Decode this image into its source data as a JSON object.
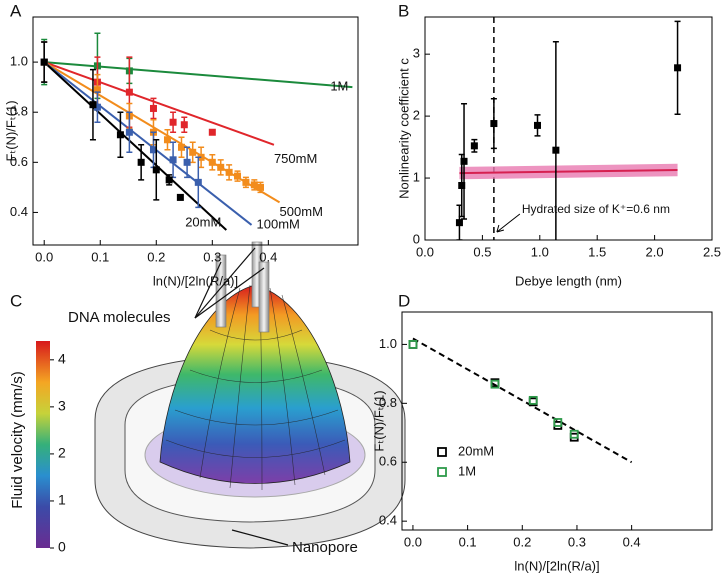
{
  "chart_data": [
    {
      "type": "scatter",
      "panel_label": "A",
      "xlabel": "ln(N)/[2ln(R/a)]",
      "ylabel": "Fₜ(N)/Fₜ(1)",
      "xlim": [
        -0.02,
        0.56
      ],
      "ylim": [
        0.27,
        1.18
      ],
      "xticks": [
        {
          "value": 0,
          "label": "0.0"
        },
        0.1,
        0.2,
        0.3,
        0.4
      ],
      "yticks": [
        0.4,
        0.6,
        0.8,
        {
          "value": 1,
          "label": "1.0"
        }
      ],
      "series": [
        {
          "name": "1M",
          "color": "#1b8a3c",
          "x": [
            0,
            0.095,
            0.152
          ],
          "values": [
            1.0,
            0.985,
            0.965
          ],
          "errors": [
            0.09,
            0.13,
            0.05
          ],
          "fit_x": [
            0,
            0.55
          ],
          "fit_values": [
            1.0,
            0.9
          ]
        },
        {
          "name": "750mM",
          "color": "#e0262b",
          "x": [
            0,
            0.095,
            0.152,
            0.195,
            0.23,
            0.25,
            0.3
          ],
          "values": [
            1.0,
            0.92,
            0.88,
            0.815,
            0.76,
            0.75,
            0.72
          ],
          "errors": [
            0.08,
            0.1,
            0.14,
            0.04,
            0.04,
            0.03,
            0.01
          ],
          "fit_x": [
            0,
            0.41
          ],
          "fit_values": [
            1.0,
            0.67
          ]
        },
        {
          "name": "500mM",
          "color": "#f28c1c",
          "x": [
            0,
            0.095,
            0.152,
            0.195,
            0.22,
            0.245,
            0.265,
            0.28,
            0.3,
            0.315,
            0.33,
            0.345,
            0.36,
            0.375,
            0.386
          ],
          "values": [
            1.0,
            0.89,
            0.785,
            0.72,
            0.69,
            0.66,
            0.64,
            0.62,
            0.6,
            0.58,
            0.56,
            0.545,
            0.52,
            0.51,
            0.5
          ],
          "errors": [
            0.08,
            0.06,
            0.05,
            0.05,
            0.04,
            0.04,
            0.04,
            0.04,
            0.03,
            0.03,
            0.03,
            0.02,
            0.02,
            0.02,
            0.02
          ],
          "fit_x": [
            0,
            0.42
          ],
          "fit_values": [
            1.0,
            0.44
          ]
        },
        {
          "name": "100mM",
          "color": "#3a5fad",
          "x": [
            0,
            0.095,
            0.152,
            0.195,
            0.23,
            0.255,
            0.275
          ],
          "values": [
            1.0,
            0.82,
            0.72,
            0.65,
            0.61,
            0.6,
            0.52
          ],
          "errors": [
            0.08,
            0.06,
            0.08,
            0.07,
            0.07,
            0.06,
            0.1
          ],
          "fit_x": [
            0,
            0.37
          ],
          "fit_values": [
            1.0,
            0.35
          ]
        },
        {
          "name": "20mM",
          "color": "#000000",
          "x": [
            0,
            0.087,
            0.136,
            0.173,
            0.2,
            0.223,
            0.243
          ],
          "values": [
            1.0,
            0.83,
            0.71,
            0.6,
            0.57,
            0.53,
            0.46
          ],
          "errors": [
            0.08,
            0.14,
            0.09,
            0.07,
            0.12,
            0.02,
            0.01
          ],
          "fit_x": [
            0,
            0.325
          ],
          "fit_values": [
            1.0,
            0.33
          ]
        }
      ]
    },
    {
      "type": "scatter",
      "panel_label": "B",
      "xlabel": "Debye length (nm)",
      "ylabel": "Nonlinearity coefficient c",
      "xlim": [
        0,
        2.5
      ],
      "ylim": [
        0,
        3.6
      ],
      "xticks": [
        {
          "value": 0,
          "label": "0.0"
        },
        0.5,
        {
          "value": 1,
          "label": "1.0"
        },
        1.5,
        {
          "value": 2,
          "label": "2.0"
        },
        2.5
      ],
      "yticks": [
        0,
        1,
        2,
        3
      ],
      "series": [
        {
          "color": "#000000",
          "x": [
            0.3,
            0.32,
            0.34,
            0.43,
            0.6,
            0.98,
            1.14,
            2.2
          ],
          "values": [
            0.28,
            0.88,
            1.27,
            1.52,
            1.88,
            1.85,
            1.45,
            2.78
          ],
          "errors": [
            0.28,
            0.5,
            0.93,
            0.1,
            0.4,
            0.17,
            1.75,
            0.75
          ]
        }
      ],
      "fit_x": [
        0.3,
        2.2
      ],
      "fit_values": [
        1.08,
        1.13
      ],
      "fit_band": 0.1,
      "fit_color": "#d62050",
      "band_color": "#e879b0",
      "vline": 0.6,
      "annotation": "Hydrated size of K⁺=0.6 nm"
    },
    {
      "type": "scatter",
      "panel_label": "D",
      "xlabel": "ln(N)/[2ln(R/a)]",
      "ylabel": "Fₜ(N)/Fₜ(1)",
      "xlim": [
        -0.02,
        0.547
      ],
      "ylim": [
        0.37,
        1.11
      ],
      "xticks": [
        {
          "value": 0,
          "label": "0.0"
        },
        0.1,
        0.2,
        0.3,
        0.4
      ],
      "yticks": [
        0.4,
        0.6,
        0.8,
        {
          "value": 1,
          "label": "1.0"
        }
      ],
      "marker": "open square",
      "legend": "lower left",
      "series": [
        {
          "name": "20mM",
          "color": "#000000",
          "x": [
            0,
            0.15,
            0.22,
            0.265,
            0.295
          ],
          "values": [
            1.0,
            0.87,
            0.805,
            0.725,
            0.685
          ]
        },
        {
          "name": "1M",
          "color": "#2e9a4a",
          "x": [
            0,
            0.15,
            0.22,
            0.265,
            0.295
          ],
          "values": [
            1.0,
            0.865,
            0.81,
            0.735,
            0.695
          ]
        }
      ],
      "fit_x": [
        0,
        0.4
      ],
      "fit_values": [
        1.02,
        0.6
      ],
      "fit_dash": true
    }
  ],
  "illustration": {
    "panel_label": "C",
    "colorbar_title": "Fluid velocity (mm/s)",
    "colorbar_lim": [
      0,
      4.4
    ],
    "colorbar_ticks": [
      0,
      1,
      2,
      3,
      4
    ],
    "dna_label": "DNA molecules",
    "pore_label": "Nanopore"
  }
}
